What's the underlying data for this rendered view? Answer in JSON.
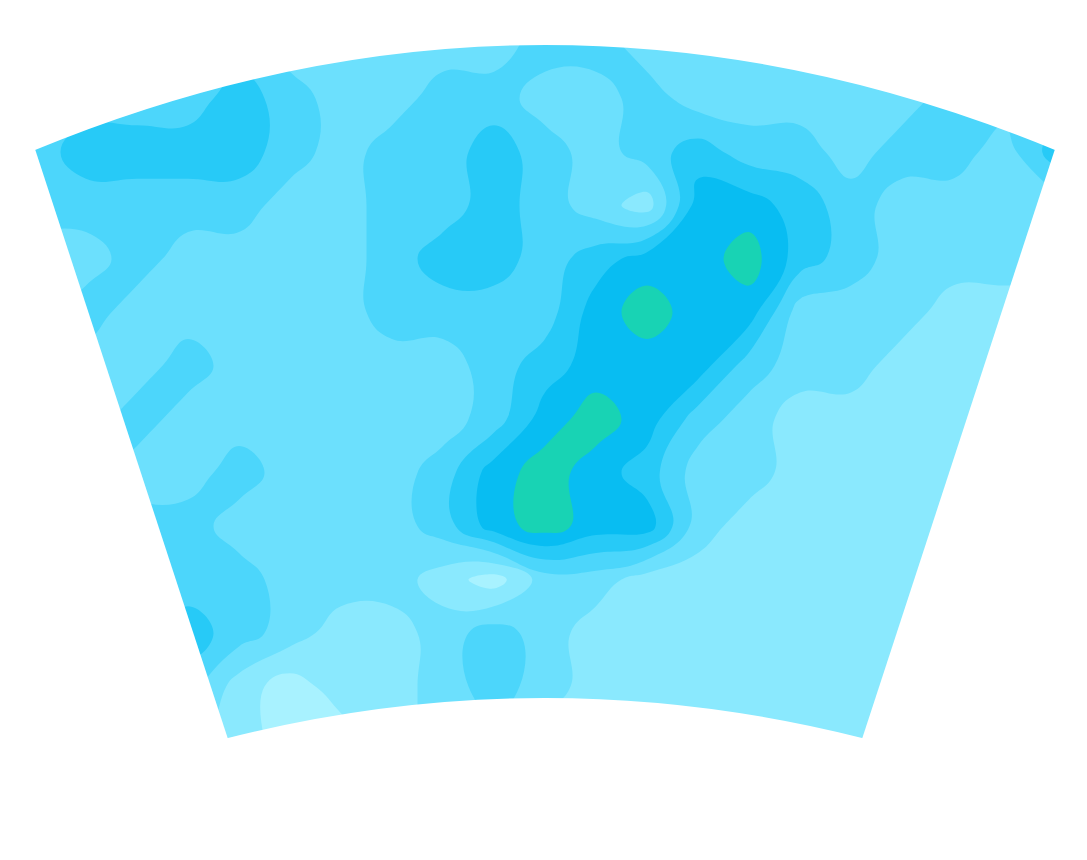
{
  "chart_data": {
    "type": "contour",
    "tick_labels": false,
    "grid": false,
    "xlim": [
      0,
      20
    ],
    "ylim": [
      13,
      0
    ],
    "zlim": [
      0.5,
      7.5
    ],
    "levels": {
      "start": 1.5,
      "end": 6.5,
      "size": 1
    },
    "colors": [
      "#a8f2ff",
      "#8ae9fe",
      "#6ce0fd",
      "#4cd6fb",
      "#27caf7",
      "#08bdf2",
      "#18d3b4"
    ],
    "z": [
      [
        4,
        4,
        4,
        4,
        4,
        3,
        3,
        3,
        3,
        3,
        4,
        4,
        3,
        3,
        3,
        3,
        3,
        3,
        3,
        4,
        4
      ],
      [
        4,
        4,
        4,
        4,
        5,
        4,
        3,
        3,
        4,
        4,
        3,
        3,
        4,
        3,
        3,
        3,
        3,
        3,
        4,
        4,
        4
      ],
      [
        4,
        5,
        5,
        5,
        5,
        4,
        3,
        4,
        4,
        5,
        4,
        3,
        4,
        5,
        4,
        4,
        3,
        4,
        4,
        3,
        5
      ],
      [
        4,
        4,
        4,
        4,
        4,
        3,
        3,
        4,
        4,
        5,
        4,
        3,
        2,
        6,
        6,
        5,
        4,
        3,
        3,
        3,
        3
      ],
      [
        3,
        3,
        4,
        3,
        3,
        3,
        3,
        4,
        5,
        5,
        4,
        5,
        6,
        6,
        7,
        5,
        4,
        3,
        3,
        3,
        3
      ],
      [
        3,
        4,
        3,
        3,
        3,
        3,
        3,
        4,
        4,
        4,
        4,
        6,
        7,
        6,
        6,
        3,
        3,
        3,
        2,
        2,
        2
      ],
      [
        3,
        3,
        3,
        4,
        3,
        3,
        3,
        3,
        3,
        4,
        5,
        6,
        6,
        6,
        4,
        3,
        3,
        2,
        2,
        2,
        2
      ],
      [
        3,
        3,
        4,
        3,
        3,
        3,
        3,
        3,
        3,
        4,
        6,
        7,
        6,
        4,
        3,
        2,
        2,
        2,
        2,
        2,
        2
      ],
      [
        2,
        4,
        3,
        3,
        4,
        3,
        3,
        3,
        4,
        6,
        7,
        6,
        5,
        3,
        3,
        2,
        2,
        2,
        2,
        2,
        2
      ],
      [
        3,
        4,
        4,
        4,
        3,
        3,
        3,
        3,
        4,
        6,
        7,
        6,
        6,
        3,
        2,
        2,
        2,
        2,
        2,
        2,
        2
      ],
      [
        4,
        4,
        4,
        4,
        4,
        3,
        3,
        3,
        2,
        1,
        3,
        3,
        2,
        2,
        2,
        2,
        2,
        2,
        2,
        2,
        2
      ],
      [
        4,
        4,
        4,
        5,
        4,
        3,
        2,
        2,
        3,
        4,
        3,
        2,
        2,
        2,
        2,
        2,
        2,
        2,
        2,
        2,
        1
      ],
      [
        5,
        4,
        4,
        4,
        2,
        1,
        2,
        2,
        3,
        4,
        3,
        2,
        2,
        2,
        2,
        2,
        2,
        2,
        2,
        1,
        1
      ],
      [
        4,
        4,
        4,
        3,
        2,
        1,
        1,
        2,
        3,
        3,
        2,
        2,
        2,
        2,
        2,
        2,
        2,
        2,
        1,
        1,
        1
      ]
    ]
  }
}
